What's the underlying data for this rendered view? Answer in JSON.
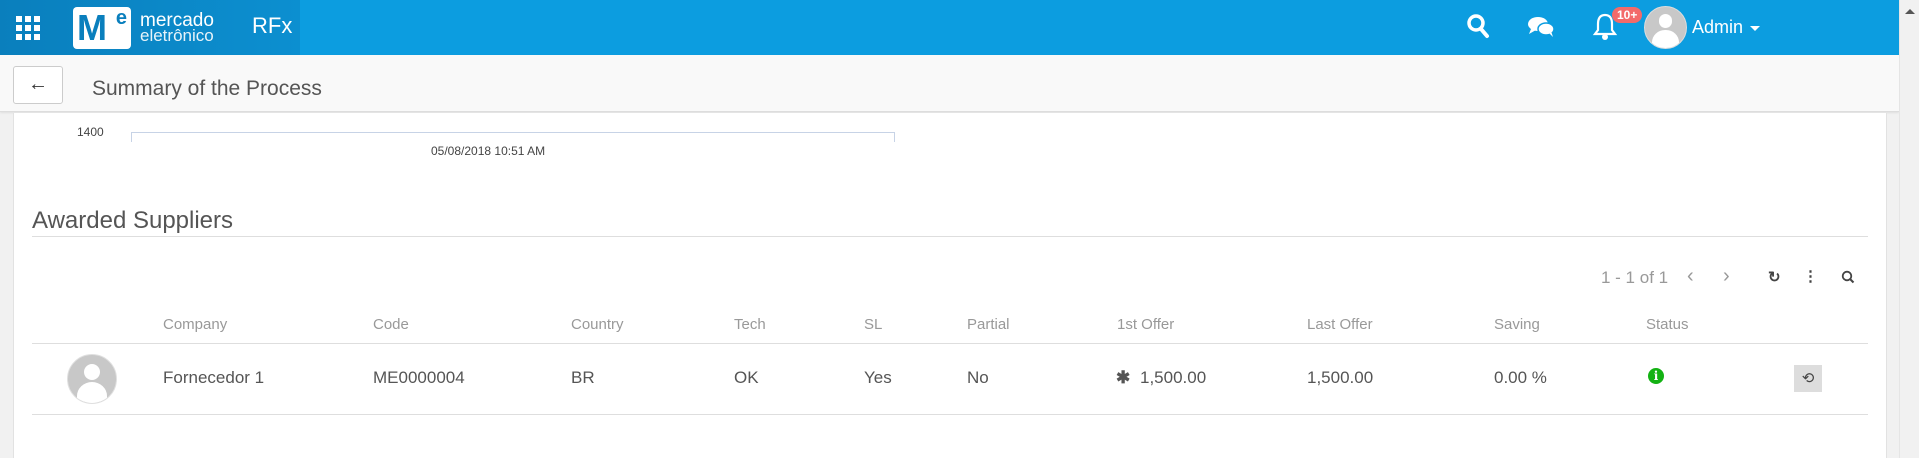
{
  "header": {
    "app_title": "RFx",
    "logo_line1": "mercado",
    "logo_line2": "eletrônico",
    "logo_mark": "M",
    "logo_mark_sup": "e",
    "notification_count": "10+",
    "user_name": "Admin",
    "brand_color": "#0c9de0"
  },
  "subheader": {
    "back_icon": "arrow-left-icon",
    "title": "Summary of the Process"
  },
  "chart": {
    "y_tick": "1400",
    "x_tick": "05/08/2018 10:51 AM"
  },
  "awarded": {
    "title": "Awarded Suppliers",
    "pager": "1 - 1 of 1",
    "columns": [
      "Company",
      "Code",
      "Country",
      "Tech",
      "SL",
      "Partial",
      "1st Offer",
      "Last Offer",
      "Saving",
      "Status"
    ],
    "rows": [
      {
        "company": "Fornecedor 1",
        "code": "ME0000004",
        "country": "BR",
        "tech": "OK",
        "sl": "Yes",
        "partial": "No",
        "first_offer": "1,500.00",
        "last_offer": "1,500.00",
        "saving": "0.00 %",
        "status_icon": "info-icon",
        "status_color": "#13b213"
      }
    ]
  }
}
